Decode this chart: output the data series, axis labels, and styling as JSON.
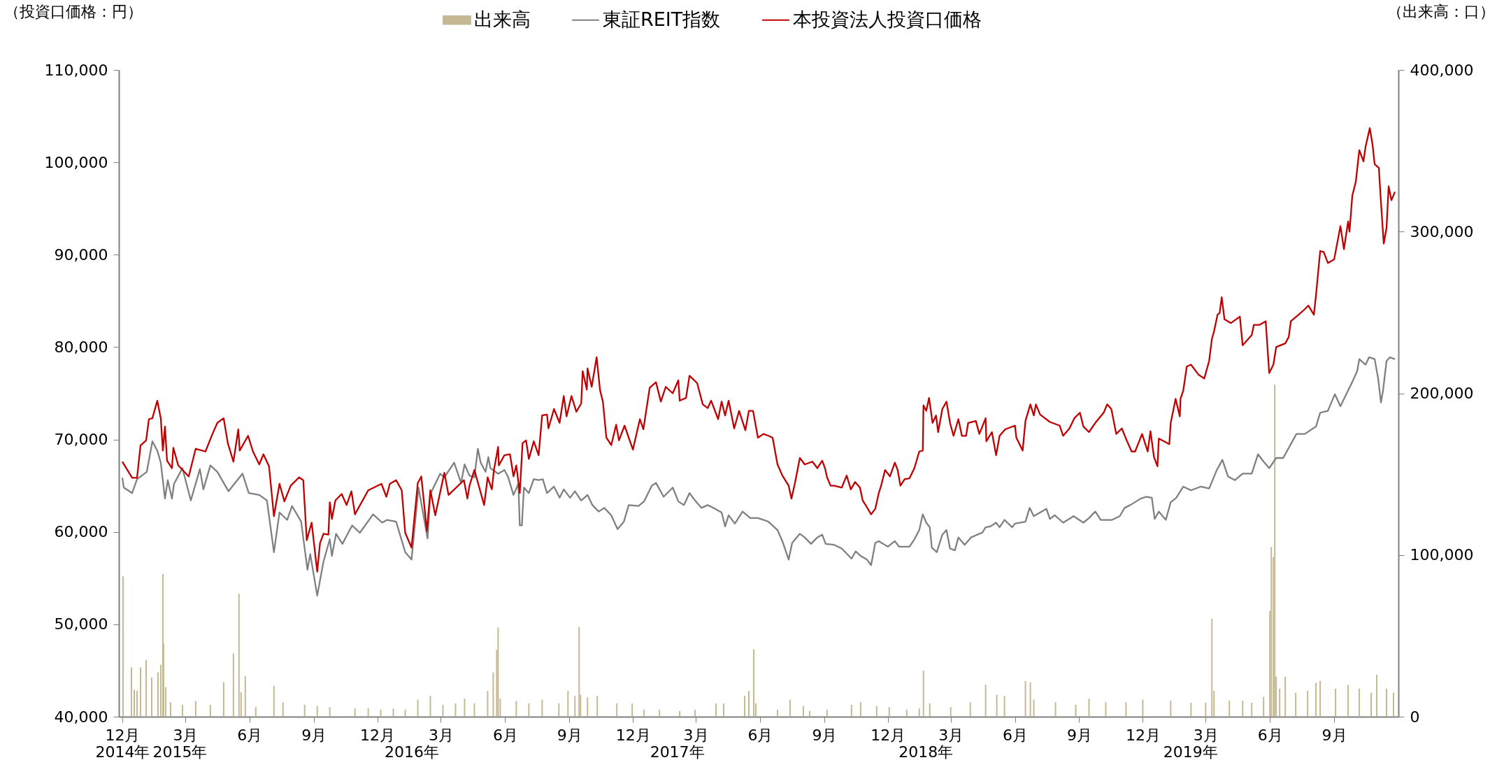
{
  "chart_data": {
    "type": "line",
    "ylabel": "（投資口価格：円）",
    "y2label": "（出来高：口）",
    "legend": "top",
    "grid": false,
    "xlim": [
      "2014-12-01",
      "2019-11-27"
    ],
    "x2lim": [
      "2014-12-01",
      "2019-11-27"
    ],
    "x2ticks": [
      {
        "value": "2014-12-01",
        "label": "2014年"
      },
      {
        "value": "2015-02-21",
        "label": "2015年"
      },
      {
        "value": "2016-01-19",
        "label": "2016年"
      },
      {
        "value": "2017-02-02",
        "label": "2017年"
      },
      {
        "value": "2018-01-24",
        "label": "2018年"
      },
      {
        "value": "2019-02-07",
        "label": "2019年"
      }
    ],
    "xticks": [
      {
        "value": "2014-12-01",
        "label": "12月"
      },
      {
        "value": "2015-03-01",
        "label": "3月"
      },
      {
        "value": "2015-06-01",
        "label": "6月"
      },
      {
        "value": "2015-09-01",
        "label": "9月"
      },
      {
        "value": "2015-12-01",
        "label": "12月"
      },
      {
        "value": "2016-03-01",
        "label": "3月"
      },
      {
        "value": "2016-06-01",
        "label": "6月"
      },
      {
        "value": "2016-09-01",
        "label": "9月"
      },
      {
        "value": "2016-12-01",
        "label": "12月"
      },
      {
        "value": "2017-03-01",
        "label": "3月"
      },
      {
        "value": "2017-06-01",
        "label": "6月"
      },
      {
        "value": "2017-09-01",
        "label": "9月"
      },
      {
        "value": "2017-12-01",
        "label": "12月"
      },
      {
        "value": "2018-03-01",
        "label": "3月"
      },
      {
        "value": "2018-06-01",
        "label": "6月"
      },
      {
        "value": "2018-09-01",
        "label": "9月"
      },
      {
        "value": "2018-12-01",
        "label": "12月"
      },
      {
        "value": "2019-03-01",
        "label": "3月"
      },
      {
        "value": "2019-06-01",
        "label": "6月"
      },
      {
        "value": "2019-09-01",
        "label": "9月"
      }
    ],
    "ylim": [
      40000,
      110000
    ],
    "yticks": [
      {
        "value": 40000,
        "label": "40,000"
      },
      {
        "value": 50000,
        "label": "50,000"
      },
      {
        "value": 60000,
        "label": "60,000"
      },
      {
        "value": 70000,
        "label": "70,000"
      },
      {
        "value": 80000,
        "label": "80,000"
      },
      {
        "value": 90000,
        "label": "90,000"
      },
      {
        "value": 100000,
        "label": "100,000"
      },
      {
        "value": 110000,
        "label": "110,000"
      }
    ],
    "y2lim": [
      0,
      400000
    ],
    "y2ticks": [
      0,
      {
        "value": 100000,
        "label": "100,000"
      },
      {
        "value": 200000,
        "label": "200,000"
      },
      {
        "value": 300000,
        "label": "300,000"
      },
      {
        "value": 400000,
        "label": "400,000"
      }
    ],
    "series": [
      {
        "name": "出来高",
        "type": "bar",
        "axis": "y2",
        "color": "#c4b994",
        "x": [
          "2014-12-02",
          "2014-12-14",
          "2014-12-18",
          "2014-12-22",
          "2014-12-27",
          "2015-01-04",
          "2015-01-12",
          "2015-01-21",
          "2015-01-25",
          "2015-01-28",
          "2015-01-29",
          "2015-02-01",
          "2015-02-08",
          "2015-02-25",
          "2015-03-16",
          "2015-04-06",
          "2015-04-25",
          "2015-05-09",
          "2015-05-17",
          "2015-05-20",
          "2015-05-26",
          "2015-06-10",
          "2015-07-06",
          "2015-07-19",
          "2015-08-19",
          "2015-09-06",
          "2015-09-24",
          "2015-10-30",
          "2015-11-18",
          "2015-12-06",
          "2015-12-24",
          "2016-01-10",
          "2016-01-28",
          "2016-02-15",
          "2016-03-04",
          "2016-03-22",
          "2016-04-04",
          "2016-04-18",
          "2016-05-07",
          "2016-05-15",
          "2016-05-20",
          "2016-05-22",
          "2016-05-25",
          "2016-06-17",
          "2016-07-05",
          "2016-07-24",
          "2016-08-17",
          "2016-08-30",
          "2016-09-09",
          "2016-09-15",
          "2016-09-17",
          "2016-09-27",
          "2016-10-11",
          "2016-11-08",
          "2016-11-30",
          "2016-12-17",
          "2017-01-08",
          "2017-02-06",
          "2017-02-28",
          "2017-03-30",
          "2017-04-10",
          "2017-05-10",
          "2017-05-16",
          "2017-05-23",
          "2017-05-26",
          "2017-06-26",
          "2017-07-14",
          "2017-08-02",
          "2017-08-11",
          "2017-09-05",
          "2017-10-10",
          "2017-10-23",
          "2017-11-15",
          "2017-12-03",
          "2017-12-28",
          "2018-01-15",
          "2018-01-21",
          "2018-01-30",
          "2018-03-01",
          "2018-03-29",
          "2018-04-20",
          "2018-05-06",
          "2018-05-17",
          "2018-06-16",
          "2018-06-23",
          "2018-06-28",
          "2018-07-29",
          "2018-08-27",
          "2018-09-15",
          "2018-10-09",
          "2018-11-07",
          "2018-12-01",
          "2019-01-10",
          "2019-02-08",
          "2019-03-01",
          "2019-03-10",
          "2019-03-13",
          "2019-04-04",
          "2019-04-23",
          "2019-05-06",
          "2019-05-23",
          "2019-06-01",
          "2019-06-03",
          "2019-06-06",
          "2019-06-08",
          "2019-06-10",
          "2019-06-15",
          "2019-06-23",
          "2019-07-08",
          "2019-07-25",
          "2019-08-06",
          "2019-08-12",
          "2019-09-03",
          "2019-09-21",
          "2019-10-07",
          "2019-10-24",
          "2019-11-01",
          "2019-11-15",
          "2019-11-25"
        ],
        "values": [
          86800,
          30500,
          16600,
          15900,
          30500,
          35100,
          24300,
          27400,
          32100,
          88300,
          45200,
          18200,
          8900,
          7400,
          9700,
          7400,
          21300,
          39000,
          76000,
          15100,
          25100,
          5900,
          19000,
          8900,
          7400,
          6600,
          5900,
          5100,
          5100,
          4300,
          5100,
          4300,
          10500,
          12800,
          7400,
          8200,
          11200,
          8200,
          15900,
          27400,
          41300,
          55200,
          11200,
          9700,
          8200,
          10500,
          8200,
          15900,
          12800,
          55500,
          13600,
          12000,
          12800,
          8200,
          8200,
          4300,
          4300,
          3500,
          4300,
          8200,
          8200,
          12800,
          15900,
          41600,
          8200,
          4300,
          10500,
          6600,
          3500,
          4300,
          7400,
          8900,
          6600,
          5900,
          4300,
          5100,
          28500,
          8200,
          5900,
          8900,
          19700,
          13600,
          12800,
          22000,
          21300,
          10500,
          8900,
          7400,
          11200,
          8900,
          8900,
          10500,
          9900,
          8600,
          8600,
          60500,
          16000,
          9900,
          9900,
          8600,
          12300,
          65400,
          104900,
          98800,
          205400,
          24700,
          17300,
          24700,
          14800,
          16000,
          21000,
          22200,
          17300,
          19700,
          17300,
          14800,
          25900,
          17300,
          14800
        ]
      },
      {
        "name": "東証REIT指数",
        "color": "#808080",
        "x": [
          "2014-12-01",
          "2014-12-03",
          "2014-12-15",
          "2014-12-22",
          "2015-01-05",
          "2015-01-13",
          "2015-01-20",
          "2015-01-25",
          "2015-01-31",
          "2015-02-04",
          "2015-02-10",
          "2015-02-13",
          "2015-02-25",
          "2015-03-09",
          "2015-03-22",
          "2015-03-27",
          "2015-04-06",
          "2015-04-16",
          "2015-05-02",
          "2015-05-22",
          "2015-05-31",
          "2015-06-15",
          "2015-06-26",
          "2015-07-06",
          "2015-07-14",
          "2015-07-25",
          "2015-08-01",
          "2015-08-14",
          "2015-08-23",
          "2015-08-27",
          "2015-09-06",
          "2015-09-15",
          "2015-09-24",
          "2015-09-27",
          "2015-10-03",
          "2015-10-12",
          "2015-10-26",
          "2015-11-06",
          "2015-11-25",
          "2015-12-08",
          "2015-12-15",
          "2015-12-28",
          "2016-01-10",
          "2016-01-19",
          "2016-01-29",
          "2016-02-11",
          "2016-02-15",
          "2016-02-29",
          "2016-03-06",
          "2016-03-20",
          "2016-03-30",
          "2016-04-04",
          "2016-04-11",
          "2016-04-18",
          "2016-04-23",
          "2016-04-27",
          "2016-05-04",
          "2016-05-08",
          "2016-05-11",
          "2016-05-22",
          "2016-05-31",
          "2016-06-05",
          "2016-06-13",
          "2016-06-20",
          "2016-06-22",
          "2016-06-25",
          "2016-06-28",
          "2016-07-05",
          "2016-07-12",
          "2016-07-19",
          "2016-07-25",
          "2016-07-31",
          "2016-08-10",
          "2016-08-18",
          "2016-08-24",
          "2016-09-02",
          "2016-09-09",
          "2016-09-18",
          "2016-09-27",
          "2016-10-04",
          "2016-10-13",
          "2016-10-21",
          "2016-10-31",
          "2016-11-09",
          "2016-11-18",
          "2016-11-25",
          "2016-12-09",
          "2016-12-17",
          "2016-12-28",
          "2017-01-03",
          "2017-01-14",
          "2017-01-27",
          "2017-02-04",
          "2017-02-12",
          "2017-02-20",
          "2017-03-01",
          "2017-03-09",
          "2017-03-18",
          "2017-03-26",
          "2017-04-07",
          "2017-04-12",
          "2017-04-17",
          "2017-04-26",
          "2017-05-07",
          "2017-05-18",
          "2017-05-29",
          "2017-06-06",
          "2017-06-13",
          "2017-06-26",
          "2017-07-03",
          "2017-07-12",
          "2017-07-17",
          "2017-07-28",
          "2017-08-04",
          "2017-08-13",
          "2017-08-22",
          "2017-08-29",
          "2017-09-03",
          "2017-09-15",
          "2017-09-26",
          "2017-10-10",
          "2017-10-16",
          "2017-10-23",
          "2017-11-01",
          "2017-11-07",
          "2017-11-13",
          "2017-11-18",
          "2017-12-01",
          "2017-12-11",
          "2017-12-17",
          "2018-01-01",
          "2018-01-08",
          "2018-01-15",
          "2018-01-20",
          "2018-01-25",
          "2018-01-30",
          "2018-02-02",
          "2018-02-09",
          "2018-02-17",
          "2018-02-23",
          "2018-02-28",
          "2018-03-07",
          "2018-03-12",
          "2018-03-21",
          "2018-03-30",
          "2018-04-08",
          "2018-04-15",
          "2018-04-20",
          "2018-04-27",
          "2018-05-05",
          "2018-05-10",
          "2018-05-17",
          "2018-05-28",
          "2018-06-01",
          "2018-06-16",
          "2018-06-22",
          "2018-06-28",
          "2018-07-07",
          "2018-07-16",
          "2018-07-21",
          "2018-07-28",
          "2018-08-09",
          "2018-08-24",
          "2018-09-07",
          "2018-09-15",
          "2018-09-24",
          "2018-10-02",
          "2018-10-18",
          "2018-10-29",
          "2018-11-05",
          "2018-11-13",
          "2018-11-28",
          "2018-12-06",
          "2018-12-14",
          "2018-12-18",
          "2018-12-24",
          "2019-01-03",
          "2019-01-10",
          "2019-01-18",
          "2019-01-28",
          "2019-02-08",
          "2019-02-22",
          "2019-03-06",
          "2019-03-17",
          "2019-03-25",
          "2019-04-02",
          "2019-04-12",
          "2019-04-23",
          "2019-05-06",
          "2019-05-15",
          "2019-05-23",
          "2019-05-31",
          "2019-06-10",
          "2019-06-20",
          "2019-07-01",
          "2019-07-09",
          "2019-07-21",
          "2019-08-06",
          "2019-08-12",
          "2019-08-23",
          "2019-09-02",
          "2019-09-10",
          "2019-09-21",
          "2019-09-28",
          "2019-10-04",
          "2019-10-07",
          "2019-10-16",
          "2019-10-21",
          "2019-10-29",
          "2019-11-03",
          "2019-11-07",
          "2019-11-10",
          "2019-11-15",
          "2019-11-20",
          "2019-11-27"
        ],
        "values": [
          65850,
          64800,
          64200,
          65700,
          66500,
          69800,
          68800,
          67500,
          63600,
          65600,
          63600,
          65200,
          66900,
          63400,
          66800,
          64600,
          67200,
          66500,
          64400,
          66300,
          64200,
          64000,
          63400,
          57800,
          62100,
          61300,
          62800,
          61100,
          55900,
          57600,
          53100,
          56800,
          59200,
          57400,
          59800,
          58700,
          60700,
          59900,
          61900,
          61000,
          61300,
          61100,
          57800,
          57000,
          64800,
          59300,
          64100,
          66300,
          65900,
          67500,
          65300,
          67300,
          66100,
          65900,
          69000,
          67500,
          66500,
          68100,
          66900,
          66300,
          66700,
          66000,
          64000,
          65200,
          60700,
          60700,
          64800,
          64200,
          65700,
          65600,
          65700,
          64200,
          64900,
          63700,
          64600,
          63700,
          64400,
          63400,
          64000,
          62900,
          62200,
          62600,
          61800,
          60300,
          61100,
          62900,
          62800,
          63300,
          65000,
          65300,
          63800,
          64800,
          63300,
          62900,
          64200,
          63300,
          62600,
          62900,
          62600,
          62100,
          60600,
          61800,
          60900,
          62200,
          61500,
          61500,
          61300,
          61100,
          60200,
          59000,
          57000,
          58800,
          59800,
          59400,
          58700,
          59400,
          59700,
          58700,
          58600,
          58200,
          57100,
          57900,
          57400,
          57000,
          56400,
          58800,
          59000,
          58400,
          59000,
          58400,
          58400,
          59200,
          60200,
          61900,
          61000,
          60500,
          58300,
          57800,
          59700,
          60200,
          58200,
          58000,
          59400,
          58600,
          59400,
          59700,
          59900,
          60500,
          60600,
          61000,
          60500,
          61300,
          60500,
          60900,
          61100,
          62600,
          61700,
          62100,
          62500,
          61400,
          61800,
          61000,
          61700,
          61000,
          61500,
          62200,
          61300,
          61300,
          61700,
          62600,
          62900,
          63600,
          63800,
          63700,
          61400,
          62200,
          61300,
          63200,
          63700,
          64900,
          64500,
          64900,
          64700,
          66700,
          67800,
          66000,
          65600,
          66300,
          66300,
          68400,
          67600,
          66900,
          68000,
          68000,
          69500,
          70600,
          70600,
          71400,
          72900,
          73100,
          74900,
          73600,
          75300,
          76400,
          77400,
          78700,
          78100,
          78900,
          78700,
          76600,
          74000,
          75300,
          78500,
          78900,
          78700
        ]
      },
      {
        "name": "本投資法人投資口価格",
        "color": "#c00000",
        "x": [
          "2014-12-01",
          "2014-12-15",
          "2014-12-22",
          "2014-12-27",
          "2015-01-04",
          "2015-01-08",
          "2015-01-13",
          "2015-01-20",
          "2015-01-25",
          "2015-01-28",
          "2015-01-31",
          "2015-02-03",
          "2015-02-10",
          "2015-02-12",
          "2015-02-19",
          "2015-03-06",
          "2015-03-16",
          "2015-03-30",
          "2015-04-09",
          "2015-04-16",
          "2015-04-25",
          "2015-05-01",
          "2015-05-09",
          "2015-05-16",
          "2015-05-18",
          "2015-05-30",
          "2015-06-06",
          "2015-06-15",
          "2015-06-21",
          "2015-06-29",
          "2015-07-06",
          "2015-07-14",
          "2015-07-21",
          "2015-07-30",
          "2015-08-11",
          "2015-08-17",
          "2015-08-22",
          "2015-08-29",
          "2015-09-06",
          "2015-09-10",
          "2015-09-15",
          "2015-09-22",
          "2015-09-24",
          "2015-09-27",
          "2015-10-02",
          "2015-10-11",
          "2015-10-18",
          "2015-10-25",
          "2015-10-30",
          "2015-11-18",
          "2015-12-07",
          "2015-12-14",
          "2015-12-19",
          "2015-12-28",
          "2016-01-05",
          "2016-01-10",
          "2016-01-19",
          "2016-01-28",
          "2016-02-02",
          "2016-02-10",
          "2016-02-15",
          "2016-02-22",
          "2016-03-06",
          "2016-03-12",
          "2016-04-03",
          "2016-04-08",
          "2016-04-11",
          "2016-04-18",
          "2016-05-02",
          "2016-05-07",
          "2016-05-13",
          "2016-05-16",
          "2016-05-22",
          "2016-05-23",
          "2016-05-31",
          "2016-06-08",
          "2016-06-13",
          "2016-06-17",
          "2016-06-22",
          "2016-06-26",
          "2016-07-01",
          "2016-07-05",
          "2016-07-12",
          "2016-07-19",
          "2016-07-24",
          "2016-07-31",
          "2016-08-02",
          "2016-08-10",
          "2016-08-18",
          "2016-08-24",
          "2016-08-28",
          "2016-09-04",
          "2016-09-11",
          "2016-09-18",
          "2016-09-20",
          "2016-09-26",
          "2016-09-27",
          "2016-10-03",
          "2016-10-10",
          "2016-10-15",
          "2016-10-19",
          "2016-10-24",
          "2016-10-31",
          "2016-11-07",
          "2016-11-11",
          "2016-11-19",
          "2016-12-01",
          "2016-12-11",
          "2016-12-16",
          "2016-12-25",
          "2017-01-03",
          "2017-01-10",
          "2017-01-17",
          "2017-01-27",
          "2017-02-04",
          "2017-02-06",
          "2017-02-15",
          "2017-02-20",
          "2017-03-03",
          "2017-03-11",
          "2017-03-18",
          "2017-03-23",
          "2017-04-02",
          "2017-04-07",
          "2017-04-12",
          "2017-04-17",
          "2017-04-25",
          "2017-05-02",
          "2017-05-11",
          "2017-05-16",
          "2017-05-22",
          "2017-05-29",
          "2017-06-06",
          "2017-06-13",
          "2017-06-19",
          "2017-06-26",
          "2017-07-03",
          "2017-07-12",
          "2017-07-16",
          "2017-07-21",
          "2017-07-28",
          "2017-08-04",
          "2017-08-15",
          "2017-08-22",
          "2017-08-29",
          "2017-09-02",
          "2017-09-05",
          "2017-09-10",
          "2017-09-15",
          "2017-09-26",
          "2017-10-03",
          "2017-10-09",
          "2017-10-15",
          "2017-10-22",
          "2017-10-26",
          "2017-10-31",
          "2017-11-07",
          "2017-11-13",
          "2017-11-18",
          "2017-11-21",
          "2017-11-27",
          "2017-12-04",
          "2017-12-11",
          "2017-12-15",
          "2017-12-19",
          "2017-12-25",
          "2018-01-01",
          "2018-01-08",
          "2018-01-15",
          "2018-01-20",
          "2018-01-21",
          "2018-01-25",
          "2018-01-29",
          "2018-02-03",
          "2018-02-08",
          "2018-02-11",
          "2018-02-17",
          "2018-02-23",
          "2018-02-28",
          "2018-03-05",
          "2018-03-12",
          "2018-03-17",
          "2018-03-23",
          "2018-03-26",
          "2018-04-06",
          "2018-04-11",
          "2018-04-20",
          "2018-04-21",
          "2018-04-29",
          "2018-05-05",
          "2018-05-10",
          "2018-05-18",
          "2018-06-01",
          "2018-06-03",
          "2018-06-12",
          "2018-06-16",
          "2018-06-23",
          "2018-06-28",
          "2018-07-01",
          "2018-07-07",
          "2018-07-21",
          "2018-08-04",
          "2018-08-09",
          "2018-08-18",
          "2018-08-25",
          "2018-09-02",
          "2018-09-07",
          "2018-09-15",
          "2018-09-24",
          "2018-10-06",
          "2018-10-11",
          "2018-10-17",
          "2018-10-24",
          "2018-11-01",
          "2018-11-08",
          "2018-11-15",
          "2018-11-20",
          "2018-11-30",
          "2018-12-08",
          "2018-12-12",
          "2018-12-17",
          "2018-12-22",
          "2018-12-24",
          "2019-01-08",
          "2019-01-10",
          "2019-01-13",
          "2019-01-17",
          "2019-01-23",
          "2019-01-24",
          "2019-01-28",
          "2019-02-02",
          "2019-02-08",
          "2019-02-19",
          "2019-02-27",
          "2019-03-06",
          "2019-03-10",
          "2019-03-13",
          "2019-03-18",
          "2019-03-21",
          "2019-03-24",
          "2019-03-28",
          "2019-04-06",
          "2019-04-19",
          "2019-04-23",
          "2019-05-06",
          "2019-05-09",
          "2019-05-17",
          "2019-05-26",
          "2019-05-31",
          "2019-06-06",
          "2019-06-10",
          "2019-06-23",
          "2019-06-28",
          "2019-07-01",
          "2019-07-12",
          "2019-07-21",
          "2019-07-26",
          "2019-08-03",
          "2019-08-06",
          "2019-08-12",
          "2019-08-17",
          "2019-08-23",
          "2019-09-01",
          "2019-09-07",
          "2019-09-10",
          "2019-09-15",
          "2019-09-21",
          "2019-09-23",
          "2019-09-27",
          "2019-10-02",
          "2019-10-07",
          "2019-10-13",
          "2019-10-16",
          "2019-10-22",
          "2019-10-26",
          "2019-10-29",
          "2019-11-04",
          "2019-11-07",
          "2019-11-11",
          "2019-11-15",
          "2019-11-18",
          "2019-11-22",
          "2019-11-27"
        ],
        "values": [
          67600,
          65850,
          65850,
          69350,
          69900,
          72200,
          72300,
          74200,
          72300,
          68800,
          71400,
          67700,
          66900,
          69100,
          67200,
          66000,
          69000,
          68700,
          70600,
          71800,
          72300,
          69600,
          67600,
          71100,
          68800,
          70400,
          68700,
          67300,
          68400,
          67100,
          61700,
          65200,
          63300,
          65000,
          65900,
          65600,
          59100,
          61000,
          55700,
          58800,
          59800,
          59700,
          63200,
          61400,
          63400,
          64100,
          62900,
          64400,
          61900,
          64500,
          65200,
          63800,
          65200,
          65600,
          64500,
          59900,
          58300,
          65300,
          66000,
          60100,
          64500,
          61800,
          66400,
          64000,
          65600,
          63600,
          65000,
          66700,
          62900,
          65900,
          64600,
          66700,
          69200,
          67200,
          68300,
          68400,
          66000,
          67200,
          64200,
          69600,
          69900,
          67900,
          69800,
          68300,
          72600,
          72700,
          71200,
          73300,
          71800,
          74700,
          72500,
          74700,
          73000,
          73900,
          77400,
          75400,
          77700,
          75700,
          78900,
          75300,
          74100,
          70200,
          69400,
          71600,
          69900,
          71500,
          68900,
          72200,
          71100,
          75600,
          76200,
          74100,
          75700,
          75000,
          76400,
          74200,
          74500,
          76900,
          76100,
          73800,
          73400,
          74200,
          72200,
          74100,
          72600,
          74200,
          71200,
          73100,
          71000,
          73100,
          73100,
          70200,
          70600,
          70400,
          70200,
          67300,
          66100,
          65000,
          63600,
          65300,
          68000,
          67300,
          67600,
          66900,
          67700,
          66900,
          65900,
          65000,
          65000,
          64800,
          66100,
          64600,
          65400,
          64800,
          63400,
          62800,
          61900,
          62500,
          64200,
          64900,
          66700,
          66000,
          67500,
          66700,
          65000,
          65700,
          65800,
          66900,
          68700,
          68800,
          73700,
          73100,
          74500,
          71800,
          72600,
          70800,
          73300,
          74100,
          71800,
          70400,
          72200,
          70400,
          70400,
          71800,
          72000,
          70600,
          72300,
          69800,
          70800,
          68300,
          70400,
          71100,
          71500,
          70200,
          68800,
          72000,
          73800,
          72600,
          73800,
          72700,
          71900,
          71500,
          70400,
          71200,
          72300,
          72900,
          71400,
          70800,
          71800,
          72900,
          73800,
          73300,
          70600,
          71200,
          69900,
          68700,
          68700,
          70600,
          68700,
          70900,
          68100,
          67100,
          70100,
          69500,
          71800,
          72900,
          74400,
          72500,
          74400,
          75300,
          77900,
          78100,
          77000,
          76600,
          78500,
          80900,
          81700,
          83500,
          83700,
          85400,
          83000,
          82600,
          83300,
          80200,
          81300,
          82400,
          82400,
          82800,
          77200,
          78100,
          80000,
          80400,
          81100,
          82800,
          83500,
          84100,
          84500,
          83500,
          85600,
          90400,
          90300,
          89100,
          89500,
          91900,
          93100,
          90600,
          93600,
          92500,
          96400,
          97900,
          101300,
          100100,
          101700,
          103700,
          101900,
          99800,
          99400,
          95700,
          91200,
          92900,
          97400,
          95900,
          96800
        ]
      }
    ]
  }
}
